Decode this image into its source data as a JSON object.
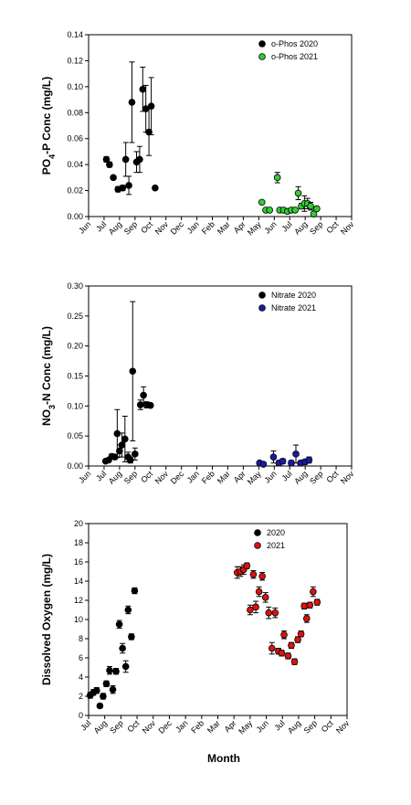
{
  "colors": {
    "y2020": "#000000",
    "phos2021": "#33cc33",
    "nitrate2021": "#1a1aaa",
    "do2021": "#dd1111"
  },
  "page": {
    "xlabel": "Month"
  },
  "chart_data": [
    {
      "type": "scatter",
      "ylabel": "PO4-P Conc (mg/L)",
      "ylabel_parts": [
        "PO",
        "4",
        "-P Conc (mg/L)"
      ],
      "ylim": [
        0,
        0.14
      ],
      "yticks": [
        "0.00",
        "0.02",
        "0.04",
        "0.06",
        "0.08",
        "0.10",
        "0.12",
        "0.14"
      ],
      "xticks": [
        "Jun",
        "Jul",
        "Aug",
        "Sep",
        "Oct",
        "Nov",
        "Dec",
        "Jan",
        "Feb",
        "Mar",
        "Apr",
        "May",
        "Jun",
        "Jul",
        "Aug",
        "Sep",
        "Oct",
        "Nov"
      ],
      "legend_position": "top-right",
      "series": [
        {
          "name": "o-Phos 2020",
          "color": "#000000",
          "points": [
            {
              "x": 1.15,
              "y": 0.044,
              "err": 0.002
            },
            {
              "x": 1.35,
              "y": 0.04,
              "err": 0.002
            },
            {
              "x": 1.6,
              "y": 0.03,
              "err": 0.001
            },
            {
              "x": 1.9,
              "y": 0.021,
              "err": 0.002
            },
            {
              "x": 2.2,
              "y": 0.022,
              "err": 0.002
            },
            {
              "x": 2.4,
              "y": 0.044,
              "err": 0.013
            },
            {
              "x": 2.6,
              "y": 0.024,
              "err": 0.007
            },
            {
              "x": 2.8,
              "y": 0.088,
              "err": 0.031
            },
            {
              "x": 3.1,
              "y": 0.042,
              "err": 0.008
            },
            {
              "x": 3.3,
              "y": 0.044,
              "err": 0.01
            },
            {
              "x": 3.5,
              "y": 0.098,
              "err": 0.017
            },
            {
              "x": 3.7,
              "y": 0.083,
              "err": 0.018
            },
            {
              "x": 3.9,
              "y": 0.065,
              "err": 0.018
            },
            {
              "x": 4.05,
              "y": 0.085,
              "err": 0.022
            },
            {
              "x": 4.3,
              "y": 0.022,
              "err": 0.001
            }
          ]
        },
        {
          "name": "o-Phos 2021",
          "color": "#33cc33",
          "points": [
            {
              "x": 11.2,
              "y": 0.011,
              "err": 0.001
            },
            {
              "x": 11.45,
              "y": 0.005,
              "err": 0.001
            },
            {
              "x": 11.7,
              "y": 0.005,
              "err": 0.001
            },
            {
              "x": 12.2,
              "y": 0.03,
              "err": 0.004
            },
            {
              "x": 12.35,
              "y": 0.005,
              "err": 0.001
            },
            {
              "x": 12.6,
              "y": 0.005,
              "err": 0.001
            },
            {
              "x": 12.85,
              "y": 0.004,
              "err": 0.001
            },
            {
              "x": 13.1,
              "y": 0.005,
              "err": 0.001
            },
            {
              "x": 13.35,
              "y": 0.005,
              "err": 0.001
            },
            {
              "x": 13.55,
              "y": 0.018,
              "err": 0.005
            },
            {
              "x": 13.75,
              "y": 0.008,
              "err": 0.002
            },
            {
              "x": 13.95,
              "y": 0.01,
              "err": 0.006
            },
            {
              "x": 14.15,
              "y": 0.01,
              "err": 0.004
            },
            {
              "x": 14.35,
              "y": 0.008,
              "err": 0.003
            },
            {
              "x": 14.55,
              "y": 0.002,
              "err": 0.001
            },
            {
              "x": 14.75,
              "y": 0.006,
              "err": 0.001
            }
          ]
        }
      ]
    },
    {
      "type": "scatter",
      "ylabel": "NO3-N Conc (mg/L)",
      "ylabel_parts": [
        "NO",
        "3",
        "-N Conc (mg/L)"
      ],
      "ylim": [
        0,
        0.3
      ],
      "yticks": [
        "0.00",
        "0.05",
        "0.10",
        "0.15",
        "0.20",
        "0.25",
        "0.30"
      ],
      "xticks": [
        "Jun",
        "Jul",
        "Aug",
        "Sep",
        "Oct",
        "Nov",
        "Dec",
        "Jan",
        "Feb",
        "Mar",
        "Apr",
        "May",
        "Jun",
        "Jul",
        "Aug",
        "Sep",
        "Oct",
        "Nov"
      ],
      "legend_position": "top-right",
      "series": [
        {
          "name": "Nitrate 2020",
          "color": "#000000",
          "points": [
            {
              "x": 1.1,
              "y": 0.008,
              "err": 0.001
            },
            {
              "x": 1.3,
              "y": 0.01,
              "err": 0.002
            },
            {
              "x": 1.5,
              "y": 0.016,
              "err": 0.004
            },
            {
              "x": 1.7,
              "y": 0.015,
              "err": 0.003
            },
            {
              "x": 1.85,
              "y": 0.054,
              "err": 0.04
            },
            {
              "x": 2.0,
              "y": 0.025,
              "err": 0.01
            },
            {
              "x": 2.15,
              "y": 0.035,
              "err": 0.02
            },
            {
              "x": 2.35,
              "y": 0.045,
              "err": 0.038
            },
            {
              "x": 2.55,
              "y": 0.015,
              "err": 0.008
            },
            {
              "x": 2.7,
              "y": 0.01,
              "err": 0.005
            },
            {
              "x": 2.85,
              "y": 0.158,
              "err": 0.116
            },
            {
              "x": 3.0,
              "y": 0.02,
              "err": 0.01
            },
            {
              "x": 3.35,
              "y": 0.102,
              "err": 0.008
            },
            {
              "x": 3.55,
              "y": 0.118,
              "err": 0.014
            },
            {
              "x": 3.75,
              "y": 0.102,
              "err": 0.005
            },
            {
              "x": 4.0,
              "y": 0.101,
              "err": 0.003
            }
          ]
        },
        {
          "name": "Nitrate 2021",
          "color": "#1a1aaa",
          "points": [
            {
              "x": 11.05,
              "y": 0.005,
              "err": 0.001
            },
            {
              "x": 11.3,
              "y": 0.003,
              "err": 0.001
            },
            {
              "x": 11.95,
              "y": 0.015,
              "err": 0.01
            },
            {
              "x": 12.3,
              "y": 0.005,
              "err": 0.004
            },
            {
              "x": 12.55,
              "y": 0.008,
              "err": 0.004
            },
            {
              "x": 13.1,
              "y": 0.005,
              "err": 0.004
            },
            {
              "x": 13.4,
              "y": 0.02,
              "err": 0.015
            },
            {
              "x": 13.7,
              "y": 0.005,
              "err": 0.003
            },
            {
              "x": 14.0,
              "y": 0.007,
              "err": 0.004
            },
            {
              "x": 14.25,
              "y": 0.01,
              "err": 0.005
            }
          ]
        }
      ]
    },
    {
      "type": "scatter",
      "ylabel": "Dissolved Oxygen (mg/L)",
      "ylabel_parts": [
        "Dissolved Oxygen (mg/L)",
        "",
        ""
      ],
      "ylim": [
        0,
        20
      ],
      "yticks": [
        "0",
        "2",
        "4",
        "6",
        "8",
        "10",
        "12",
        "14",
        "16",
        "18",
        "20"
      ],
      "xticks": [
        "Jul",
        "Aug",
        "Sep",
        "Oct",
        "Nov",
        "Dec",
        "Jan",
        "Feb",
        "Mar",
        "Apr",
        "May",
        "Jun",
        "Jul",
        "Aug",
        "Sep",
        "Oct",
        "Nov"
      ],
      "legend_position": "top-right",
      "series": [
        {
          "name": "2020",
          "color": "#000000",
          "points": [
            {
              "x": 0.1,
              "y": 2.1,
              "err": 0.3
            },
            {
              "x": 0.3,
              "y": 2.4,
              "err": 0.3
            },
            {
              "x": 0.5,
              "y": 2.6,
              "err": 0.3
            },
            {
              "x": 0.7,
              "y": 1.0,
              "err": 0.2
            },
            {
              "x": 0.9,
              "y": 2.0,
              "err": 0.3
            },
            {
              "x": 1.1,
              "y": 3.3,
              "err": 0.3
            },
            {
              "x": 1.3,
              "y": 4.7,
              "err": 0.4
            },
            {
              "x": 1.5,
              "y": 2.7,
              "err": 0.4
            },
            {
              "x": 1.7,
              "y": 4.6,
              "err": 0.3
            },
            {
              "x": 1.9,
              "y": 9.5,
              "err": 0.4
            },
            {
              "x": 2.1,
              "y": 7.0,
              "err": 0.5
            },
            {
              "x": 2.3,
              "y": 5.1,
              "err": 0.6
            },
            {
              "x": 2.45,
              "y": 11.0,
              "err": 0.4
            },
            {
              "x": 2.65,
              "y": 8.2,
              "err": 0.3
            },
            {
              "x": 2.85,
              "y": 13.0,
              "err": 0.3
            }
          ]
        },
        {
          "name": "2021",
          "color": "#dd1111",
          "points": [
            {
              "x": 9.2,
              "y": 14.9,
              "err": 0.6
            },
            {
              "x": 9.4,
              "y": 15.0,
              "err": 0.5
            },
            {
              "x": 9.6,
              "y": 15.2,
              "err": 0.5
            },
            {
              "x": 9.8,
              "y": 15.6,
              "err": 0.3
            },
            {
              "x": 10.0,
              "y": 11.0,
              "err": 0.5
            },
            {
              "x": 10.2,
              "y": 14.7,
              "err": 0.4
            },
            {
              "x": 10.35,
              "y": 11.3,
              "err": 0.6
            },
            {
              "x": 10.55,
              "y": 12.9,
              "err": 0.5
            },
            {
              "x": 10.75,
              "y": 14.5,
              "err": 0.4
            },
            {
              "x": 10.95,
              "y": 12.3,
              "err": 0.5
            },
            {
              "x": 11.15,
              "y": 10.7,
              "err": 0.6
            },
            {
              "x": 11.35,
              "y": 7.0,
              "err": 0.6
            },
            {
              "x": 11.55,
              "y": 10.7,
              "err": 0.5
            },
            {
              "x": 11.75,
              "y": 6.7,
              "err": 0.3
            },
            {
              "x": 11.95,
              "y": 6.5,
              "err": 0.3
            },
            {
              "x": 12.1,
              "y": 8.4,
              "err": 0.4
            },
            {
              "x": 12.35,
              "y": 6.2,
              "err": 0.3
            },
            {
              "x": 12.55,
              "y": 7.3,
              "err": 0.3
            },
            {
              "x": 12.75,
              "y": 5.6,
              "err": 0.3
            },
            {
              "x": 12.95,
              "y": 7.9,
              "err": 0.3
            },
            {
              "x": 13.15,
              "y": 8.5,
              "err": 0.3
            },
            {
              "x": 13.35,
              "y": 11.4,
              "err": 0.3
            },
            {
              "x": 13.5,
              "y": 10.1,
              "err": 0.4
            },
            {
              "x": 13.7,
              "y": 11.5,
              "err": 0.3
            },
            {
              "x": 13.9,
              "y": 12.9,
              "err": 0.5
            },
            {
              "x": 14.15,
              "y": 11.8,
              "err": 0.3
            }
          ]
        }
      ]
    }
  ]
}
